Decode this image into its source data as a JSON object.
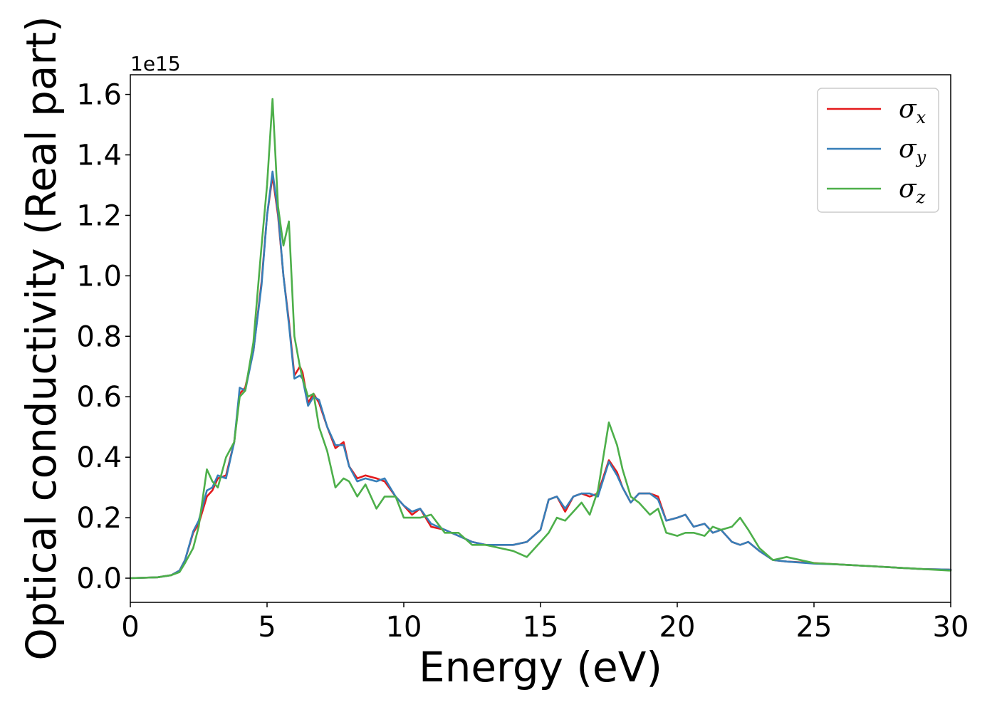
{
  "chart_data": {
    "type": "line",
    "xlabel": "Energy (eV)",
    "ylabel": "Optical conductivity (Real part)",
    "y_offset_label": "1e15",
    "xlim": [
      0,
      30
    ],
    "ylim": [
      -0.08,
      1.665
    ],
    "xticks": [
      0,
      5,
      10,
      15,
      20,
      25,
      30
    ],
    "xtick_labels": [
      "0",
      "5",
      "10",
      "15",
      "20",
      "25",
      "30"
    ],
    "yticks": [
      0.0,
      0.2,
      0.4,
      0.6,
      0.8,
      1.0,
      1.2,
      1.4,
      1.6
    ],
    "ytick_labels": [
      "0.0",
      "0.2",
      "0.4",
      "0.6",
      "0.8",
      "1.0",
      "1.2",
      "1.4",
      "1.6"
    ],
    "grid": false,
    "legend_position": "top-right",
    "series": [
      {
        "name": "σx",
        "symbol": "σ",
        "subscript": "x",
        "color": "#e41a1c",
        "x": [
          0,
          1,
          1.5,
          1.8,
          2.0,
          2.3,
          2.5,
          2.8,
          3.0,
          3.2,
          3.5,
          3.8,
          4.0,
          4.2,
          4.5,
          4.8,
          5.0,
          5.2,
          5.4,
          5.6,
          5.8,
          6.0,
          6.2,
          6.3,
          6.5,
          6.7,
          6.9,
          7.2,
          7.5,
          7.8,
          8.0,
          8.3,
          8.6,
          9.0,
          9.3,
          9.7,
          10.0,
          10.3,
          10.6,
          11.0,
          11.5,
          12.0,
          12.5,
          13.0,
          13.5,
          14.0,
          14.5,
          15.0,
          15.3,
          15.6,
          15.9,
          16.2,
          16.5,
          16.8,
          17.1,
          17.5,
          17.8,
          18.0,
          18.3,
          18.6,
          19.0,
          19.3,
          19.6,
          20.0,
          20.3,
          20.6,
          21.0,
          21.3,
          21.6,
          22.0,
          22.3,
          22.6,
          23.0,
          23.5,
          24.0,
          25.0,
          26.0,
          27.0,
          28.0,
          29.0,
          30.0
        ],
        "y": [
          0.0,
          0.003,
          0.01,
          0.025,
          0.06,
          0.15,
          0.18,
          0.27,
          0.29,
          0.33,
          0.34,
          0.45,
          0.61,
          0.63,
          0.75,
          0.98,
          1.2,
          1.33,
          1.2,
          1.0,
          0.85,
          0.67,
          0.7,
          0.68,
          0.58,
          0.61,
          0.58,
          0.5,
          0.43,
          0.45,
          0.37,
          0.33,
          0.34,
          0.33,
          0.32,
          0.27,
          0.24,
          0.21,
          0.23,
          0.17,
          0.16,
          0.14,
          0.12,
          0.11,
          0.11,
          0.11,
          0.12,
          0.16,
          0.26,
          0.27,
          0.22,
          0.27,
          0.28,
          0.27,
          0.28,
          0.39,
          0.35,
          0.3,
          0.25,
          0.28,
          0.28,
          0.27,
          0.19,
          0.2,
          0.21,
          0.17,
          0.18,
          0.15,
          0.16,
          0.12,
          0.11,
          0.12,
          0.09,
          0.06,
          0.055,
          0.05,
          0.045,
          0.04,
          0.035,
          0.03,
          0.028
        ]
      },
      {
        "name": "σy",
        "symbol": "σ",
        "subscript": "y",
        "color": "#377eb8",
        "x": [
          0,
          1,
          1.5,
          1.8,
          2.0,
          2.3,
          2.5,
          2.8,
          3.0,
          3.2,
          3.5,
          3.8,
          4.0,
          4.2,
          4.5,
          4.8,
          5.0,
          5.2,
          5.4,
          5.6,
          5.8,
          6.0,
          6.2,
          6.3,
          6.5,
          6.7,
          6.9,
          7.2,
          7.5,
          7.8,
          8.0,
          8.3,
          8.6,
          9.0,
          9.3,
          9.7,
          10.0,
          10.3,
          10.6,
          11.0,
          11.5,
          12.0,
          12.5,
          13.0,
          13.5,
          14.0,
          14.5,
          15.0,
          15.3,
          15.6,
          15.9,
          16.2,
          16.5,
          16.8,
          17.1,
          17.5,
          17.8,
          18.0,
          18.3,
          18.6,
          19.0,
          19.3,
          19.6,
          20.0,
          20.3,
          20.6,
          21.0,
          21.3,
          21.6,
          22.0,
          22.3,
          22.6,
          23.0,
          23.5,
          24.0,
          25.0,
          26.0,
          27.0,
          28.0,
          29.0,
          30.0
        ],
        "y": [
          0.0,
          0.003,
          0.01,
          0.025,
          0.06,
          0.155,
          0.19,
          0.29,
          0.3,
          0.34,
          0.33,
          0.45,
          0.63,
          0.62,
          0.75,
          0.97,
          1.2,
          1.345,
          1.21,
          1.0,
          0.84,
          0.66,
          0.67,
          0.66,
          0.57,
          0.6,
          0.59,
          0.5,
          0.44,
          0.44,
          0.37,
          0.32,
          0.33,
          0.32,
          0.33,
          0.27,
          0.24,
          0.22,
          0.23,
          0.18,
          0.16,
          0.14,
          0.12,
          0.11,
          0.11,
          0.11,
          0.12,
          0.16,
          0.26,
          0.27,
          0.23,
          0.27,
          0.28,
          0.28,
          0.27,
          0.385,
          0.34,
          0.3,
          0.25,
          0.28,
          0.28,
          0.26,
          0.19,
          0.2,
          0.21,
          0.17,
          0.18,
          0.15,
          0.16,
          0.12,
          0.11,
          0.12,
          0.09,
          0.06,
          0.055,
          0.048,
          0.045,
          0.04,
          0.035,
          0.03,
          0.028
        ]
      },
      {
        "name": "σz",
        "symbol": "σ",
        "subscript": "z",
        "color": "#4daf4a",
        "x": [
          0,
          1,
          1.5,
          1.8,
          2.0,
          2.3,
          2.5,
          2.8,
          3.0,
          3.2,
          3.5,
          3.8,
          4.0,
          4.2,
          4.5,
          4.8,
          5.0,
          5.2,
          5.4,
          5.6,
          5.8,
          6.0,
          6.2,
          6.3,
          6.5,
          6.7,
          6.9,
          7.2,
          7.5,
          7.8,
          8.0,
          8.3,
          8.6,
          9.0,
          9.3,
          9.7,
          10.0,
          10.3,
          10.6,
          11.0,
          11.5,
          12.0,
          12.5,
          13.0,
          13.5,
          14.0,
          14.5,
          15.0,
          15.3,
          15.6,
          15.9,
          16.2,
          16.5,
          16.8,
          17.1,
          17.5,
          17.8,
          18.0,
          18.3,
          18.6,
          19.0,
          19.3,
          19.6,
          20.0,
          20.3,
          20.6,
          21.0,
          21.3,
          21.6,
          22.0,
          22.3,
          22.6,
          23.0,
          23.5,
          24.0,
          25.0,
          26.0,
          27.0,
          28.0,
          29.0,
          30.0
        ],
        "y": [
          0.0,
          0.003,
          0.01,
          0.02,
          0.05,
          0.1,
          0.17,
          0.36,
          0.32,
          0.3,
          0.4,
          0.45,
          0.6,
          0.62,
          0.78,
          1.1,
          1.3,
          1.585,
          1.23,
          1.1,
          1.18,
          0.8,
          0.7,
          0.66,
          0.6,
          0.61,
          0.5,
          0.42,
          0.3,
          0.33,
          0.32,
          0.27,
          0.31,
          0.23,
          0.27,
          0.27,
          0.2,
          0.2,
          0.2,
          0.21,
          0.15,
          0.15,
          0.11,
          0.11,
          0.1,
          0.09,
          0.07,
          0.12,
          0.15,
          0.2,
          0.19,
          0.22,
          0.25,
          0.21,
          0.29,
          0.515,
          0.44,
          0.36,
          0.27,
          0.25,
          0.21,
          0.23,
          0.15,
          0.14,
          0.15,
          0.15,
          0.14,
          0.17,
          0.16,
          0.17,
          0.2,
          0.16,
          0.1,
          0.06,
          0.07,
          0.05,
          0.045,
          0.04,
          0.035,
          0.03,
          0.025
        ]
      }
    ]
  }
}
